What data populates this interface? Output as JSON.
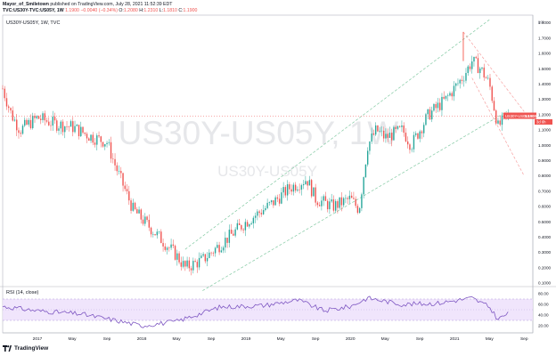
{
  "header": {
    "author": "Mayor_of_Smiletown",
    "published": "published on TradingView.com, July 28, 2021 11:52:39 EDT",
    "symbol": "TVC:US30Y-TVC:US05Y, 1W",
    "last": "1.1900",
    "change": "−0.0040 (−0.34%)",
    "o_label": "O:",
    "o": "1.2080",
    "h_label": "H:",
    "h": "1.2310",
    "l_label": "L:",
    "l": "1.1810",
    "c_label": "C:",
    "c": "1.1900"
  },
  "pane_legend": "US30Y-US05Y, 1W, TVC",
  "watermark": {
    "big": "US30Y-US05Y, 1W",
    "small": "US30Y-US05Y"
  },
  "price_axis": {
    "unit": "pct",
    "ticks": [
      "1.8000",
      "1.7000",
      "1.6000",
      "1.5000",
      "1.4000",
      "1.3000",
      "1.2000",
      "1.1000",
      "1.0000",
      "0.9000",
      "0.8000",
      "0.7000",
      "0.6000",
      "0.5000",
      "0.4000",
      "0.3000",
      "0.2000",
      "0.1000"
    ]
  },
  "price_tag": {
    "symbol": "US30Y-US05Y",
    "value": "1.1900",
    "countdown": "3d 6h"
  },
  "rsi": {
    "label": "RSI (14, close)",
    "ticks": [
      "80.00",
      "60.00",
      "40.00",
      "20.00"
    ]
  },
  "time_axis": [
    "2017",
    "May",
    "Sep",
    "2018",
    "May",
    "Sep",
    "2019",
    "May",
    "Sep",
    "2020",
    "May",
    "Sep",
    "2021",
    "May",
    "Sep"
  ],
  "footer": {
    "brand": "TradingView"
  },
  "colors": {
    "up": "#26a69a",
    "down": "#ef5350",
    "channel": "#82c9a2",
    "rsi": "#7e57c2",
    "rsi_band": "#e9d8fb",
    "red_line": "#f44336"
  },
  "chart_data": {
    "type": "candlestick",
    "interval": "1W",
    "x_range": [
      "2016-09",
      "2021-10"
    ],
    "y_range": [
      0.1,
      1.85
    ],
    "log_scale": false,
    "grid": false,
    "last_close": 1.19,
    "anchor_points": [
      {
        "t": "2016-09",
        "v": 1.37
      },
      {
        "t": "2016-10",
        "v": 1.2
      },
      {
        "t": "2016-11",
        "v": 1.1
      },
      {
        "t": "2017-01",
        "v": 1.18
      },
      {
        "t": "2017-03",
        "v": 1.14
      },
      {
        "t": "2017-05",
        "v": 1.12
      },
      {
        "t": "2017-07",
        "v": 1.06
      },
      {
        "t": "2017-09",
        "v": 1.02
      },
      {
        "t": "2017-10",
        "v": 0.86
      },
      {
        "t": "2017-11",
        "v": 0.72
      },
      {
        "t": "2017-12",
        "v": 0.58
      },
      {
        "t": "2018-01",
        "v": 0.52
      },
      {
        "t": "2018-03",
        "v": 0.4
      },
      {
        "t": "2018-05",
        "v": 0.28
      },
      {
        "t": "2018-06",
        "v": 0.2
      },
      {
        "t": "2018-08",
        "v": 0.25
      },
      {
        "t": "2018-09",
        "v": 0.3
      },
      {
        "t": "2018-11",
        "v": 0.4
      },
      {
        "t": "2019-01",
        "v": 0.5
      },
      {
        "t": "2019-04",
        "v": 0.62
      },
      {
        "t": "2019-06",
        "v": 0.72
      },
      {
        "t": "2019-08",
        "v": 0.78
      },
      {
        "t": "2019-09",
        "v": 0.65
      },
      {
        "t": "2019-11",
        "v": 0.6
      },
      {
        "t": "2020-01",
        "v": 0.65
      },
      {
        "t": "2020-02",
        "v": 0.58
      },
      {
        "t": "2020-03",
        "v": 1.0
      },
      {
        "t": "2020-04",
        "v": 1.1
      },
      {
        "t": "2020-05",
        "v": 1.05
      },
      {
        "t": "2020-07",
        "v": 1.1
      },
      {
        "t": "2020-08",
        "v": 1.0
      },
      {
        "t": "2020-10",
        "v": 1.2
      },
      {
        "t": "2020-12",
        "v": 1.3
      },
      {
        "t": "2021-02",
        "v": 1.45
      },
      {
        "t": "2021-03",
        "v": 1.55
      },
      {
        "t": "2021-04",
        "v": 1.5
      },
      {
        "t": "2021-05",
        "v": 1.4
      },
      {
        "t": "2021-06",
        "v": 1.12
      },
      {
        "t": "2021-07",
        "v": 1.19
      }
    ],
    "channel_green": [
      {
        "from": {
          "t": "2018-06",
          "v": 0.32
        },
        "to": {
          "t": "2021-05",
          "v": 1.82
        }
      },
      {
        "from": {
          "t": "2018-08",
          "v": 0.05
        },
        "to": {
          "t": "2021-07",
          "v": 1.22
        }
      }
    ],
    "channel_red": [
      {
        "from": {
          "t": "2021-02",
          "v": 1.74
        },
        "to": {
          "t": "2021-09",
          "v": 1.22
        }
      },
      {
        "from": {
          "t": "2021-03",
          "v": 1.44
        },
        "to": {
          "t": "2021-09",
          "v": 0.8
        }
      }
    ],
    "rsi_range": [
      10,
      90
    ],
    "rsi_band": [
      30,
      70
    ],
    "rsi_anchor_points": [
      {
        "t": "2016-09",
        "v": 56
      },
      {
        "t": "2017-01",
        "v": 48
      },
      {
        "t": "2017-06",
        "v": 42
      },
      {
        "t": "2017-10",
        "v": 30
      },
      {
        "t": "2018-01",
        "v": 20
      },
      {
        "t": "2018-05",
        "v": 28
      },
      {
        "t": "2018-10",
        "v": 55
      },
      {
        "t": "2019-03",
        "v": 58
      },
      {
        "t": "2019-07",
        "v": 68
      },
      {
        "t": "2019-10",
        "v": 48
      },
      {
        "t": "2020-01",
        "v": 56
      },
      {
        "t": "2020-03",
        "v": 72
      },
      {
        "t": "2020-07",
        "v": 60
      },
      {
        "t": "2020-11",
        "v": 62
      },
      {
        "t": "2021-03",
        "v": 72
      },
      {
        "t": "2021-05",
        "v": 55
      },
      {
        "t": "2021-06",
        "v": 32
      },
      {
        "t": "2021-07",
        "v": 42
      }
    ]
  }
}
